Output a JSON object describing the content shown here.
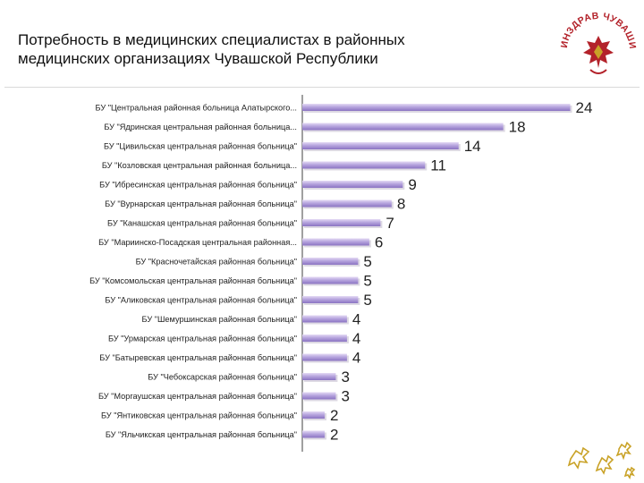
{
  "header": {
    "title_line1": "Потребность в медицинских специалистах в районных",
    "title_line2": "медицинских организациях Чувашской Республики",
    "logo_text": "МИНЗДРАВ ЧУВАШИИ"
  },
  "colors": {
    "bar_light": "#e4daf4",
    "bar_mid": "#b7a5de",
    "bar_dark": "#8a73c2",
    "emblem_red": "#b3222a",
    "emblem_gold": "#c9a227"
  },
  "icons": [
    "ministry-emblem-icon",
    "ornament-star-icon"
  ],
  "chart_data": {
    "type": "bar",
    "orientation": "horizontal",
    "title": "Потребность в медицинских специалистах в районных медицинских организациях Чувашской Республики",
    "xlim": [
      0,
      25
    ],
    "grid": false,
    "categories": [
      "БУ \"Центральная районная больница Алатырского...",
      "БУ \"Ядринская центральная районная больница...",
      "БУ \"Цивильская центральная районная больница\"",
      "БУ \"Козловская центральная районная больница...",
      "БУ \"Ибресинская центральная районная больница\"",
      "БУ \"Вурнарская центральная районная больница\"",
      "БУ \"Канашская центральная районная больница\"",
      "БУ \"Мариинско-Посадская центральная районная...",
      "БУ \"Красночетайская районная больница\"",
      "БУ \"Комсомольская центральная районная больница\"",
      "БУ \"Аликовская центральная районная больница\"",
      "БУ \"Шемуршинская районная больница\"",
      "БУ \"Урмарская центральная районная больница\"",
      "БУ \"Батыревская центральная районная больница\"",
      "БУ \"Чебоксарская районная больница\"",
      "БУ \"Моргаушская центральная районная больница\"",
      "БУ \"Янтиковская центральная районная больница\"",
      "БУ \"Яльчикская центральная районная больница\""
    ],
    "values": [
      24,
      18,
      14,
      11,
      9,
      8,
      7,
      6,
      5,
      5,
      5,
      4,
      4,
      4,
      3,
      3,
      2,
      2
    ]
  }
}
